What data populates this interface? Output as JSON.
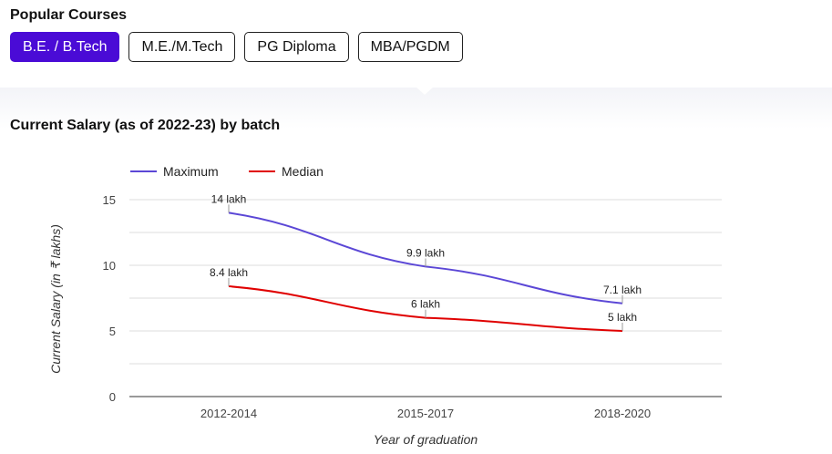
{
  "header": {
    "title": "Popular Courses"
  },
  "courses": [
    {
      "label": "B.E. / B.Tech",
      "active": true
    },
    {
      "label": "M.E./M.Tech",
      "active": false
    },
    {
      "label": "PG Diploma",
      "active": false
    },
    {
      "label": "MBA/PGDM",
      "active": false
    }
  ],
  "colors": {
    "accent": "#4a0bd6",
    "maximum": "#5b47d6",
    "median": "#e00000"
  },
  "chart_data": {
    "type": "line",
    "title": "Current Salary (as of 2022-23) by batch",
    "xlabel": "Year of graduation",
    "ylabel": "Current Salary (in ₹ lakhs)",
    "categories": [
      "2012-2014",
      "2015-2017",
      "2018-2020"
    ],
    "ylim": [
      0,
      15
    ],
    "yticks": [
      0,
      5,
      10,
      15
    ],
    "grid": true,
    "legend_position": "top-left",
    "series": [
      {
        "name": "Maximum",
        "color": "#5b47d6",
        "values": [
          14,
          9.9,
          7.1
        ],
        "labels": [
          "14 lakh",
          "9.9 lakh",
          "7.1 lakh"
        ]
      },
      {
        "name": "Median",
        "color": "#e00000",
        "values": [
          8.4,
          6,
          5
        ],
        "labels": [
          "8.4 lakh",
          "6 lakh",
          "5 lakh"
        ]
      }
    ]
  }
}
